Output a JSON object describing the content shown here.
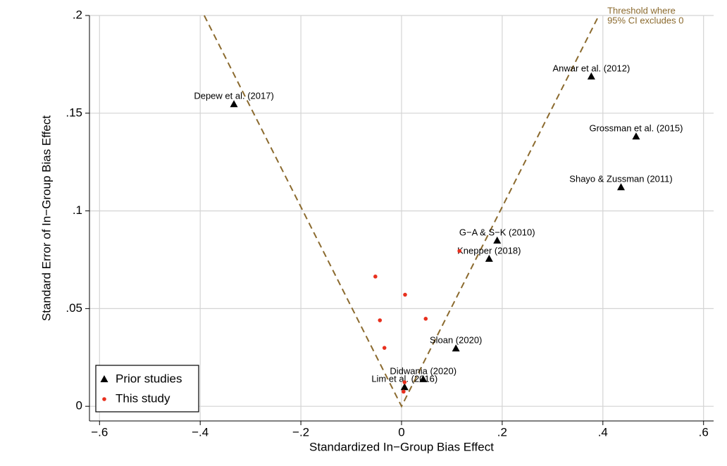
{
  "chart_data": {
    "type": "scatter",
    "x_label": "Standardized In−Group Bias Effect",
    "y_label": "Standard Error of In−Group Bias Effect",
    "xlim": [
      -0.62,
      0.62
    ],
    "ylim": [
      -0.0075,
      0.2
    ],
    "xticks": [
      {
        "value": -0.6,
        "label": "−.6"
      },
      {
        "value": -0.4,
        "label": "−.4"
      },
      {
        "value": -0.2,
        "label": "−.2"
      },
      0,
      {
        "value": 0.2,
        "label": ".2"
      },
      {
        "value": 0.4,
        "label": ".4"
      },
      {
        "value": 0.6,
        "label": ".6"
      }
    ],
    "yticks": [
      0,
      {
        "value": 0.05,
        "label": ".05"
      },
      {
        "value": 0.1,
        "label": ".1"
      },
      {
        "value": 0.15,
        "label": ".15"
      },
      {
        "value": 0.2,
        "label": ".2"
      }
    ],
    "grid": true,
    "legend": "lower left",
    "threshold": {
      "label": [
        "Threshold where",
        "95% CI excludes 0"
      ],
      "color": "#8b6a2e",
      "x": [
        -0.392,
        0,
        0.392
      ],
      "y": [
        0.2,
        0,
        0.2
      ]
    },
    "series": [
      {
        "name": "Prior studies",
        "color": "#000000",
        "marker": "triangle",
        "labels": [
          "Depew et al. (2017)",
          "Anwar et al. (2012)",
          "Grossman et al. (2015)",
          "Shayo & Zussman (2011)",
          "G−A & S−K (2010)",
          "Knepper (2018)",
          "Sloan (2020)",
          "Didwania (2020)",
          "Lim et al. (2016)"
        ],
        "x": [
          -0.333,
          0.377,
          0.466,
          0.436,
          0.19,
          0.174,
          0.108,
          0.043,
          0.006
        ],
        "values": [
          0.1545,
          0.1687,
          0.138,
          0.112,
          0.0847,
          0.0754,
          0.0295,
          0.0138,
          0.0097
        ]
      },
      {
        "name": "This study",
        "color": "#e8301e",
        "marker": "circle",
        "x": [
          -0.052,
          0.007,
          -0.043,
          0.048,
          -0.034,
          0.115,
          0.006,
          0.004
        ],
        "values": [
          0.0664,
          0.0571,
          0.044,
          0.0448,
          0.0299,
          0.0795,
          0.0123,
          0.0075
        ]
      }
    ]
  }
}
